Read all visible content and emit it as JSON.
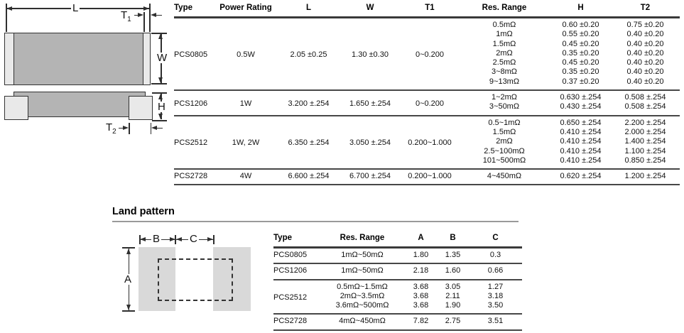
{
  "colors": {
    "component_body_gray": "#b4b4b4",
    "terminal_cap_gray": "#e9e9e9",
    "land_pad_gray": "#d9d9d9",
    "table_rule": "#474747",
    "heading_rule": "#9a9a9a"
  },
  "diagram": {
    "top_view": {
      "l": "L",
      "t1_base": "T",
      "t1_sub": "1",
      "w": "W"
    },
    "side_view": {
      "h": "H",
      "t2_base": "T",
      "t2_sub": "2"
    },
    "land": {
      "a": "A",
      "b": "B",
      "c": "C"
    }
  },
  "main_table": {
    "headers": [
      "Type",
      "Power Rating",
      "L",
      "W",
      "T1",
      "Res. Range",
      "H",
      "T2"
    ],
    "groups": [
      {
        "type": "PCS0805",
        "power_rating": "0.5W",
        "l": "2.05 ±0.25",
        "w": "1.30 ±0.30",
        "t1": "0~0.200",
        "rows": [
          {
            "res_range": "0.5mΩ",
            "h": "0.60 ±0.20",
            "t2": "0.75 ±0.20"
          },
          {
            "res_range": "1mΩ",
            "h": "0.55 ±0.20",
            "t2": "0.40 ±0.20"
          },
          {
            "res_range": "1.5mΩ",
            "h": "0.45 ±0.20",
            "t2": "0.40 ±0.20"
          },
          {
            "res_range": "2mΩ",
            "h": "0.35 ±0.20",
            "t2": "0.40 ±0.20"
          },
          {
            "res_range": "2.5mΩ",
            "h": "0.45 ±0.20",
            "t2": "0.40 ±0.20"
          },
          {
            "res_range": "3~8mΩ",
            "h": "0.35 ±0.20",
            "t2": "0.40 ±0.20"
          },
          {
            "res_range": "9~13mΩ",
            "h": "0.37 ±0.20",
            "t2": "0.40 ±0.20"
          }
        ]
      },
      {
        "type": "PCS1206",
        "power_rating": "1W",
        "l": "3.200 ±.254",
        "w": "1.650 ±.254",
        "t1": "0~0.200",
        "rows": [
          {
            "res_range": "1~2mΩ",
            "h": "0.630 ±.254",
            "t2": "0.508 ±.254"
          },
          {
            "res_range": "3~50mΩ",
            "h": "0.430 ±.254",
            "t2": "0.508 ±.254"
          }
        ]
      },
      {
        "type": "PCS2512",
        "power_rating": "1W, 2W",
        "l": "6.350 ±.254",
        "w": "3.050 ±.254",
        "t1": "0.200~1.000",
        "rows": [
          {
            "res_range": "0.5~1mΩ",
            "h": "0.650 ±.254",
            "t2": "2.200 ±.254"
          },
          {
            "res_range": "1.5mΩ",
            "h": "0.410 ±.254",
            "t2": "2.000 ±.254"
          },
          {
            "res_range": "2mΩ",
            "h": "0.410 ±.254",
            "t2": "1.400 ±.254"
          },
          {
            "res_range": "2.5~100mΩ",
            "h": "0.410 ±.254",
            "t2": "1.100 ±.254"
          },
          {
            "res_range": "101~500mΩ",
            "h": "0.410 ±.254",
            "t2": "0.850 ±.254"
          }
        ]
      },
      {
        "type": "PCS2728",
        "power_rating": "4W",
        "l": "6.600 ±.254",
        "w": "6.700 ±.254",
        "t1": "0.200~1.000",
        "rows": [
          {
            "res_range": "4~450mΩ",
            "h": "0.620 ±.254",
            "t2": "1.200 ±.254"
          }
        ]
      }
    ]
  },
  "land_pattern": {
    "title": "Land pattern",
    "table": {
      "headers": [
        "Type",
        "Res. Range",
        "A",
        "B",
        "C"
      ],
      "groups": [
        {
          "type": "PCS0805",
          "rows": [
            {
              "res_range": "1mΩ~50mΩ",
              "a": "1.80",
              "b": "1.35",
              "c": "0.3"
            }
          ]
        },
        {
          "type": "PCS1206",
          "rows": [
            {
              "res_range": "1mΩ~50mΩ",
              "a": "2.18",
              "b": "1.60",
              "c": "0.66"
            }
          ]
        },
        {
          "type": "PCS2512",
          "rows": [
            {
              "res_range": "0.5mΩ~1.5mΩ",
              "a": "3.68",
              "b": "3.05",
              "c": "1.27"
            },
            {
              "res_range": "2mΩ~3.5mΩ",
              "a": "3.68",
              "b": "2.11",
              "c": "3.18"
            },
            {
              "res_range": "3.6mΩ~500mΩ",
              "a": "3.68",
              "b": "1.90",
              "c": "3.50"
            }
          ]
        },
        {
          "type": "PCS2728",
          "rows": [
            {
              "res_range": "4mΩ~450mΩ",
              "a": "7.82",
              "b": "2.75",
              "c": "3.51"
            }
          ]
        }
      ]
    }
  }
}
